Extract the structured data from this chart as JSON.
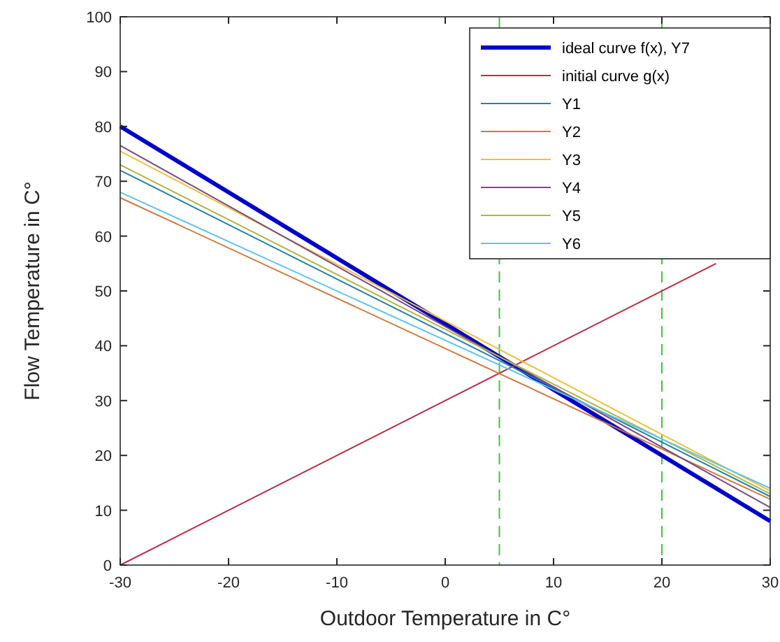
{
  "chart_data": {
    "type": "line",
    "xlabel": "Outdoor Temperature in C°",
    "ylabel": "Flow Temperature in C°",
    "xlim": [
      -30,
      30
    ],
    "ylim": [
      0,
      100
    ],
    "xticks": [
      -30,
      -20,
      -10,
      0,
      10,
      20,
      30
    ],
    "yticks": [
      0,
      10,
      20,
      30,
      40,
      50,
      60,
      70,
      80,
      90,
      100
    ],
    "legend": "top right",
    "grid": false,
    "line_style": "solid",
    "marker": "none",
    "series": [
      {
        "name": "ideal curve f(x), Y7",
        "color": "#0000c8",
        "x": [
          -30,
          30
        ],
        "values": [
          80,
          8
        ]
      },
      {
        "name": "initial curve g(x)",
        "color": "#b5304a",
        "x": [
          -30,
          25
        ],
        "values": [
          0,
          55
        ]
      },
      {
        "name": "Y1",
        "color": "#2a7fa8",
        "x": [
          -30,
          30
        ],
        "values": [
          72,
          12.5
        ]
      },
      {
        "name": "Y2",
        "color": "#d07a40",
        "x": [
          -30,
          30
        ],
        "values": [
          67,
          12
        ]
      },
      {
        "name": "Y3",
        "color": "#ecc040",
        "x": [
          -30,
          30
        ],
        "values": [
          75.5,
          13.5
        ]
      },
      {
        "name": "Y4",
        "color": "#7a4a80",
        "x": [
          -30,
          30
        ],
        "values": [
          76.5,
          10.5
        ]
      },
      {
        "name": "Y5",
        "color": "#a8b848",
        "x": [
          -30,
          30
        ],
        "values": [
          73,
          13
        ]
      },
      {
        "name": "Y6",
        "color": "#60c4e8",
        "x": [
          -30,
          30
        ],
        "values": [
          68,
          14
        ]
      }
    ],
    "ref_lines": [
      {
        "axis": "x",
        "value": 5,
        "color": "#33cc33",
        "line_style": "dashed"
      },
      {
        "axis": "x",
        "value": 20,
        "color": "#33cc33",
        "line_style": "dashed"
      }
    ]
  }
}
